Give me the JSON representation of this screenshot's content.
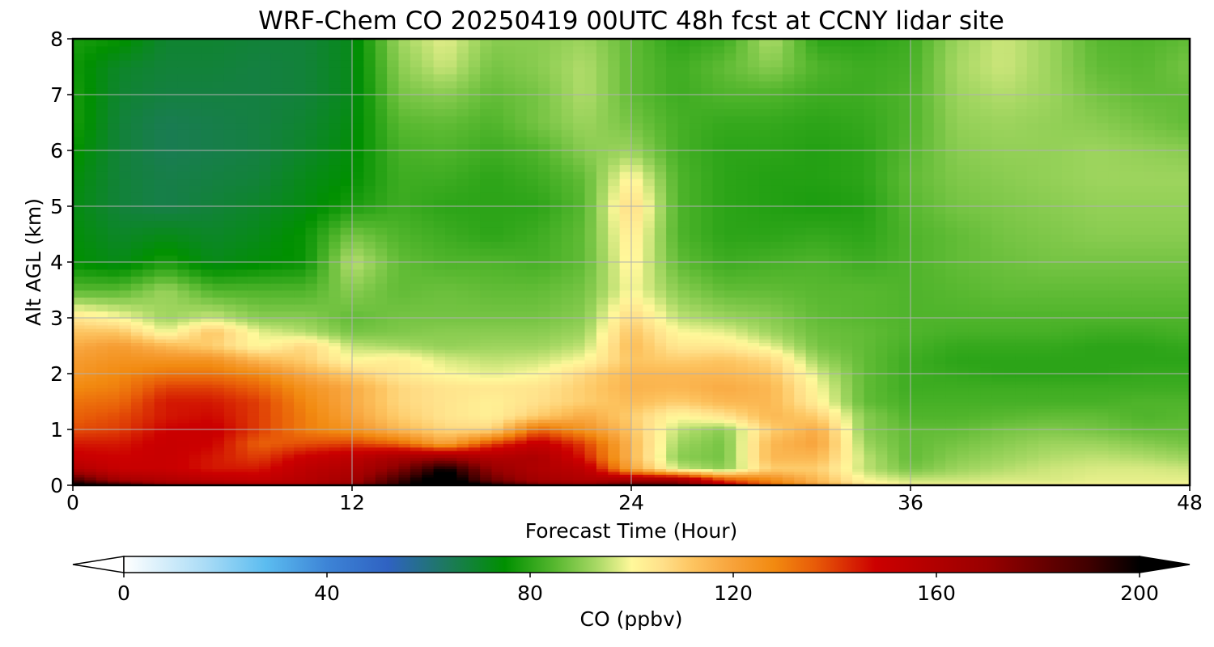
{
  "chart_data": {
    "type": "heatmap",
    "title": "WRF-Chem CO  20250419 00UTC 48h fcst at CCNY lidar site",
    "xlabel": "Forecast Time (Hour)",
    "ylabel": "Alt AGL (km)",
    "xlim": [
      0,
      48
    ],
    "ylim": [
      0,
      8
    ],
    "xticks": [
      "0",
      "12",
      "24",
      "36",
      "48"
    ],
    "yticks": [
      "0",
      "1",
      "2",
      "3",
      "4",
      "5",
      "6",
      "7",
      "8"
    ],
    "grid": true,
    "x_hours": [
      0,
      2,
      4,
      6,
      8,
      10,
      12,
      14,
      16,
      18,
      20,
      22,
      24,
      26,
      28,
      30,
      32,
      34,
      36,
      38,
      40,
      42,
      44,
      46,
      48
    ],
    "y_km": [
      0,
      0.1,
      0.3,
      0.5,
      0.75,
      1.0,
      1.25,
      1.5,
      1.75,
      2.0,
      2.25,
      2.5,
      2.75,
      3.0,
      3.5,
      4.0,
      4.5,
      5.0,
      5.5,
      6.0,
      6.5,
      7.0,
      7.5,
      8.0
    ],
    "co_ppbv": [
      [
        205,
        200,
        175,
        170,
        165,
        162,
        175,
        195,
        210,
        202,
        180,
        175,
        190,
        185,
        155,
        135,
        120,
        105,
        100,
        100,
        100,
        100,
        100,
        100,
        100
      ],
      [
        190,
        165,
        160,
        155,
        152,
        158,
        165,
        190,
        210,
        180,
        165,
        160,
        165,
        168,
        140,
        128,
        115,
        100,
        96,
        96,
        97,
        97,
        98,
        98,
        98
      ],
      [
        160,
        150,
        150,
        145,
        145,
        155,
        160,
        175,
        200,
        170,
        160,
        155,
        120,
        96,
        90,
        110,
        110,
        95,
        88,
        92,
        94,
        96,
        97,
        97,
        96
      ],
      [
        150,
        148,
        150,
        145,
        140,
        150,
        155,
        165,
        170,
        160,
        162,
        145,
        115,
        90,
        88,
        115,
        115,
        95,
        86,
        90,
        92,
        94,
        95,
        94,
        92
      ],
      [
        145,
        145,
        150,
        148,
        135,
        138,
        140,
        135,
        120,
        140,
        152,
        140,
        115,
        92,
        88,
        115,
        120,
        92,
        86,
        88,
        90,
        92,
        92,
        90,
        88
      ],
      [
        138,
        140,
        148,
        150,
        140,
        130,
        125,
        115,
        108,
        108,
        135,
        125,
        112,
        95,
        90,
        110,
        118,
        90,
        86,
        86,
        88,
        89,
        88,
        86,
        86
      ],
      [
        135,
        138,
        145,
        147,
        140,
        130,
        120,
        110,
        105,
        102,
        110,
        118,
        110,
        100,
        105,
        115,
        110,
        90,
        84,
        84,
        85,
        86,
        86,
        84,
        85
      ],
      [
        132,
        134,
        145,
        145,
        140,
        128,
        118,
        108,
        105,
        102,
        106,
        110,
        114,
        110,
        115,
        115,
        102,
        86,
        83,
        83,
        83,
        83,
        83,
        84,
        84
      ],
      [
        128,
        130,
        140,
        140,
        135,
        125,
        118,
        108,
        105,
        104,
        105,
        110,
        116,
        115,
        118,
        115,
        100,
        86,
        82,
        82,
        82,
        82,
        82,
        82,
        82
      ],
      [
        124,
        128,
        132,
        132,
        128,
        118,
        110,
        104,
        100,
        98,
        100,
        108,
        115,
        115,
        115,
        112,
        97,
        86,
        82,
        81,
        80,
        80,
        80,
        81,
        81
      ],
      [
        122,
        125,
        125,
        125,
        115,
        110,
        100,
        103,
        97,
        95,
        96,
        100,
        112,
        110,
        112,
        108,
        92,
        86,
        82,
        80,
        80,
        80,
        80,
        80,
        80
      ],
      [
        118,
        122,
        115,
        110,
        100,
        108,
        95,
        93,
        91,
        92,
        92,
        95,
        114,
        104,
        104,
        98,
        88,
        86,
        83,
        81,
        81,
        81,
        80,
        80,
        81
      ],
      [
        112,
        112,
        98,
        112,
        98,
        94,
        88,
        89,
        90,
        90,
        90,
        92,
        112,
        100,
        98,
        92,
        87,
        86,
        84,
        83,
        83,
        83,
        82,
        82,
        83
      ],
      [
        105,
        100,
        92,
        96,
        90,
        90,
        86,
        88,
        88,
        88,
        88,
        90,
        108,
        95,
        92,
        90,
        86,
        85,
        84,
        84,
        84,
        84,
        84,
        84,
        84
      ],
      [
        85,
        85,
        92,
        84,
        84,
        84,
        90,
        86,
        87,
        86,
        86,
        88,
        100,
        90,
        86,
        86,
        85,
        85,
        84,
        85,
        86,
        86,
        86,
        86,
        86
      ],
      [
        75,
        72,
        78,
        72,
        74,
        76,
        95,
        86,
        84,
        84,
        83,
        86,
        102,
        86,
        82,
        83,
        84,
        82,
        84,
        86,
        87,
        88,
        88,
        88,
        88
      ],
      [
        74,
        70,
        72,
        70,
        72,
        76,
        88,
        84,
        82,
        80,
        82,
        86,
        104,
        84,
        80,
        80,
        81,
        80,
        84,
        86,
        88,
        89,
        90,
        90,
        90
      ],
      [
        73,
        68,
        66,
        68,
        70,
        73,
        78,
        82,
        80,
        80,
        80,
        85,
        108,
        84,
        80,
        79,
        78,
        79,
        85,
        88,
        89,
        90,
        91,
        91,
        91
      ],
      [
        74,
        68,
        66,
        67,
        68,
        72,
        75,
        82,
        82,
        80,
        82,
        86,
        102,
        84,
        80,
        79,
        79,
        80,
        86,
        89,
        90,
        91,
        92,
        92,
        92
      ],
      [
        76,
        68,
        65,
        66,
        67,
        70,
        74,
        83,
        84,
        82,
        84,
        90,
        92,
        83,
        80,
        80,
        79,
        80,
        85,
        90,
        91,
        91,
        92,
        91,
        90
      ],
      [
        78,
        68,
        65,
        66,
        67,
        69,
        73,
        85,
        86,
        84,
        88,
        92,
        88,
        83,
        81,
        81,
        80,
        81,
        84,
        91,
        92,
        91,
        90,
        88,
        86
      ],
      [
        78,
        69,
        67,
        67,
        67,
        68,
        72,
        88,
        90,
        86,
        88,
        94,
        86,
        82,
        84,
        84,
        82,
        82,
        84,
        92,
        94,
        92,
        88,
        86,
        86
      ],
      [
        77,
        70,
        68,
        68,
        67,
        68,
        72,
        90,
        96,
        88,
        90,
        94,
        86,
        82,
        86,
        90,
        84,
        82,
        83,
        93,
        96,
        92,
        86,
        85,
        88
      ],
      [
        78,
        76,
        69,
        69,
        68,
        68,
        72,
        92,
        98,
        90,
        90,
        92,
        86,
        80,
        82,
        94,
        80,
        80,
        82,
        92,
        96,
        92,
        85,
        84,
        86
      ]
    ],
    "colorbar": {
      "label": "CO  (ppbv)",
      "min": 0,
      "max": 200,
      "ticks": [
        "0",
        "40",
        "80",
        "120",
        "160",
        "200"
      ],
      "extend": "both",
      "stops": [
        [
          0,
          "#ffffff"
        ],
        [
          16,
          "#aadcf6"
        ],
        [
          28,
          "#5bbcf0"
        ],
        [
          40,
          "#3d84d6"
        ],
        [
          52,
          "#2f62c2"
        ],
        [
          64,
          "#1c7a5a"
        ],
        [
          75,
          "#009000"
        ],
        [
          85,
          "#58b830"
        ],
        [
          93,
          "#a7d864"
        ],
        [
          100,
          "#fff89a"
        ],
        [
          106,
          "#ffe08a"
        ],
        [
          112,
          "#fdc460"
        ],
        [
          120,
          "#f7a23a"
        ],
        [
          128,
          "#f28a10"
        ],
        [
          136,
          "#e85c08"
        ],
        [
          148,
          "#cc0000"
        ],
        [
          170,
          "#990000"
        ],
        [
          190,
          "#400000"
        ],
        [
          200,
          "#000000"
        ]
      ]
    }
  }
}
